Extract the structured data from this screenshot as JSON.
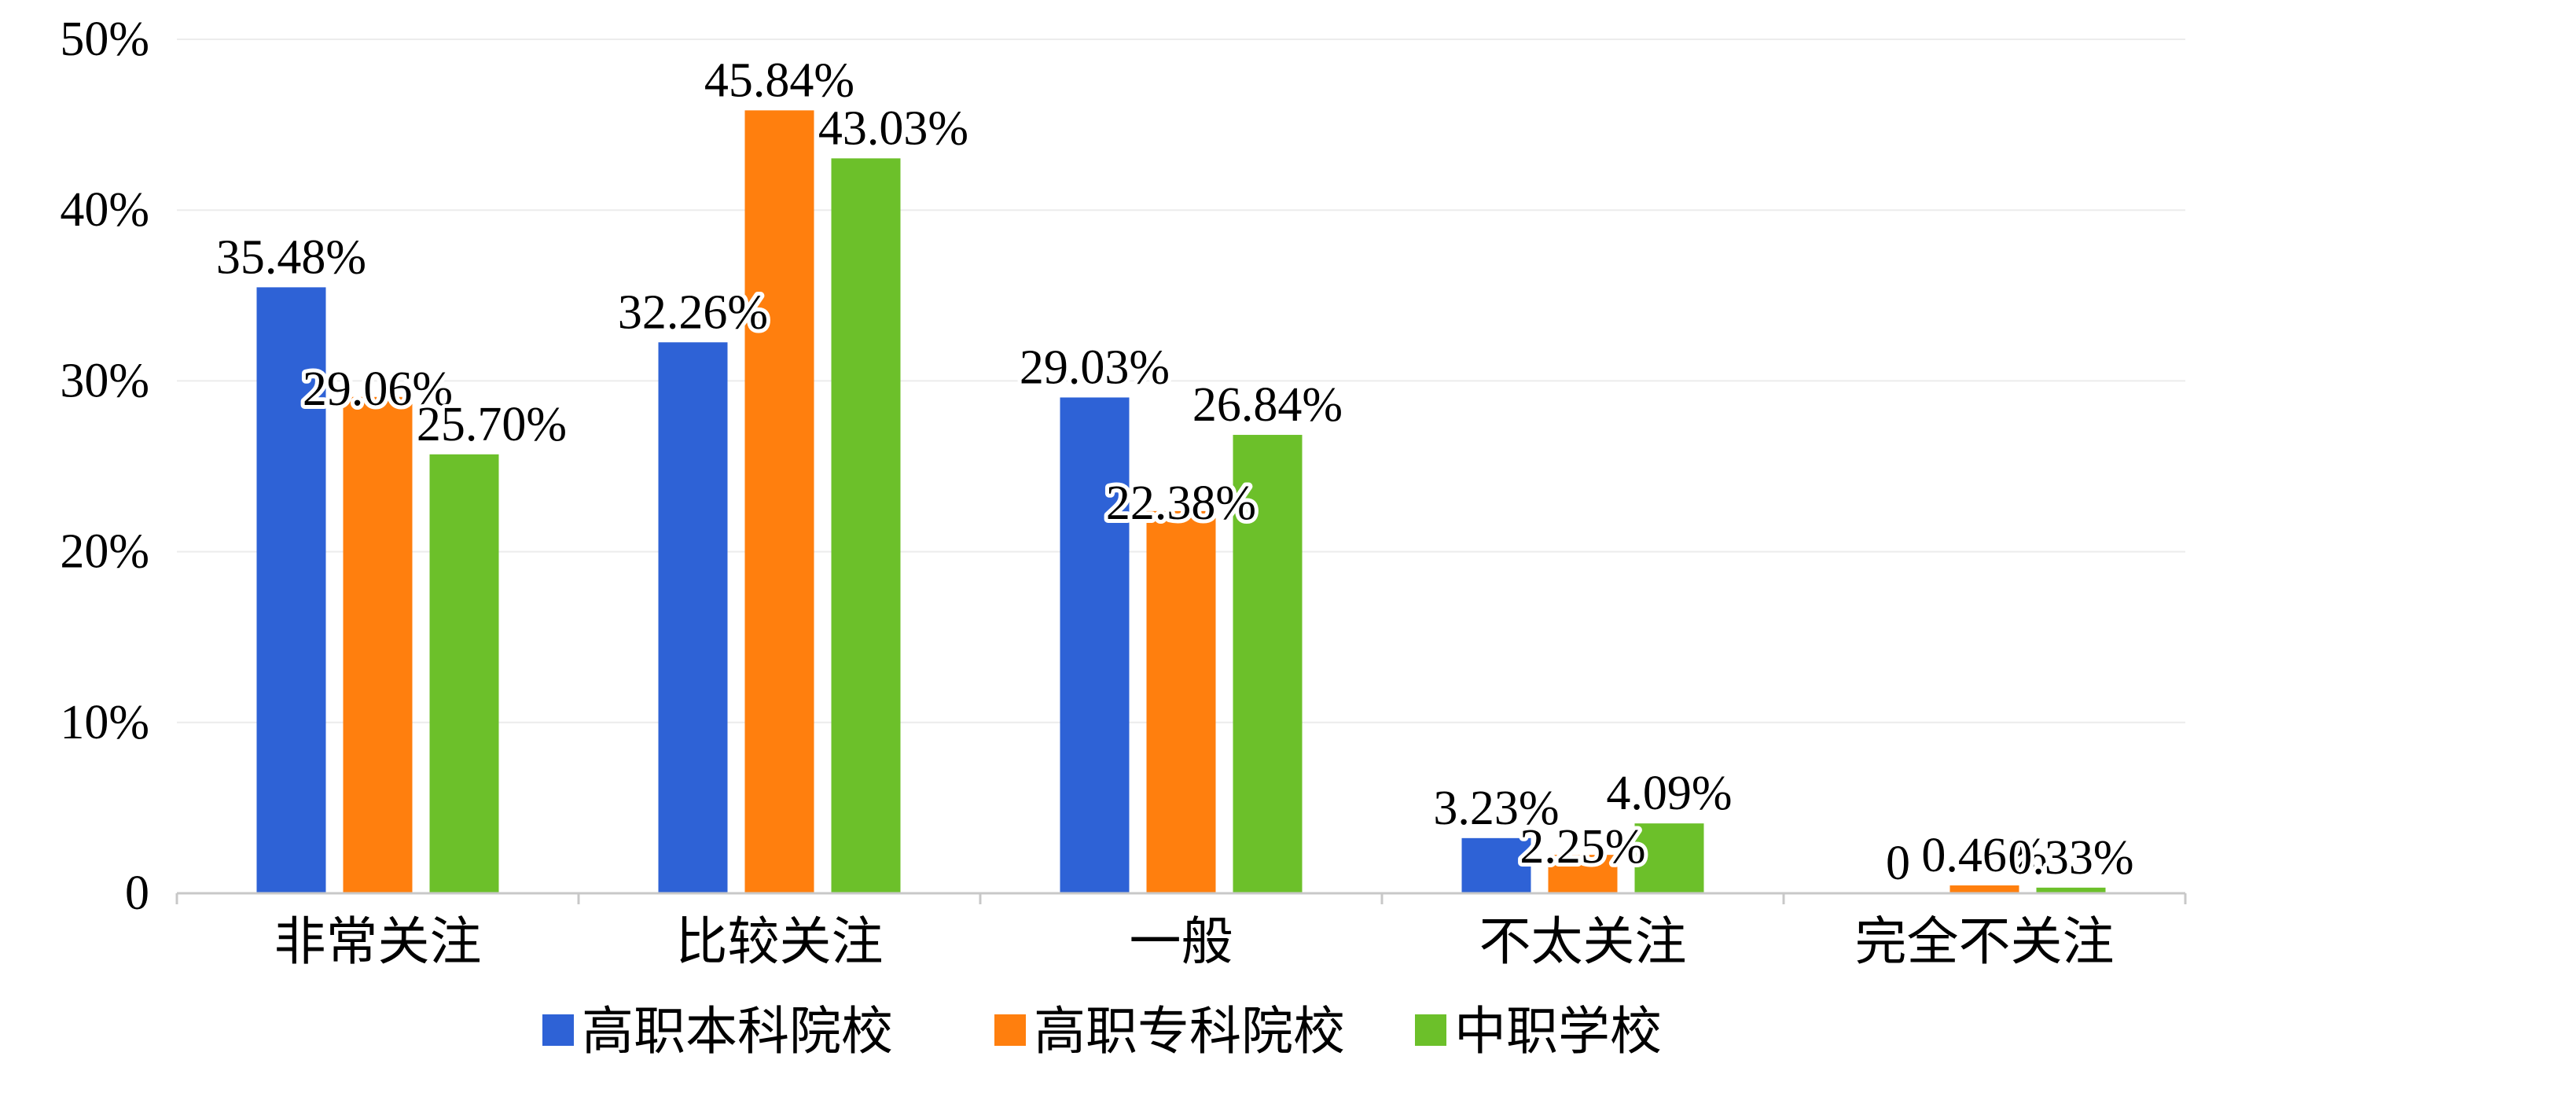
{
  "chart_data": {
    "type": "bar",
    "categories": [
      "非常关注",
      "比较关注",
      "一般",
      "不太关注",
      "完全不关注"
    ],
    "series": [
      {
        "name": "高职本科院校",
        "color": "#2e62d6",
        "values": [
          35.48,
          32.26,
          29.03,
          3.23,
          0
        ],
        "labels": [
          "35.48%",
          "32.26%",
          "29.03%",
          "3.23%",
          "0"
        ]
      },
      {
        "name": "高职专科院校",
        "color": "#ff7f0e",
        "values": [
          29.06,
          45.84,
          22.38,
          2.25,
          0.46
        ],
        "labels": [
          "29.06%",
          "45.84%",
          "22.38%",
          "2.25%",
          "0.46%"
        ]
      },
      {
        "name": "中职学校",
        "color": "#6cc02a",
        "values": [
          25.7,
          43.03,
          26.84,
          4.09,
          0.33
        ],
        "labels": [
          "25.70%",
          "43.03%",
          "26.84%",
          "4.09%",
          "0.33%"
        ]
      }
    ],
    "y_ticks": [
      {
        "value": 0,
        "label": "0"
      },
      {
        "value": 10,
        "label": "10%"
      },
      {
        "value": 20,
        "label": "20%"
      },
      {
        "value": 30,
        "label": "30%"
      },
      {
        "value": 40,
        "label": "40%"
      },
      {
        "value": 50,
        "label": "50%"
      }
    ],
    "ylim": [
      0,
      50
    ],
    "grid": true,
    "legend_position": "bottom"
  }
}
